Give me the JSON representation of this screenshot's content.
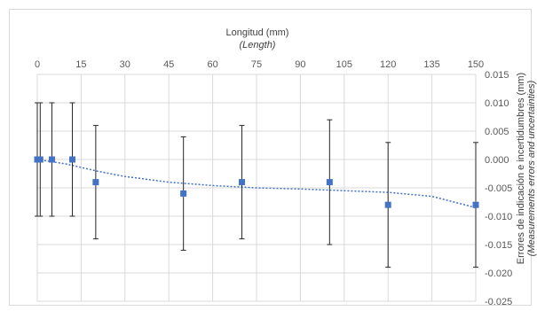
{
  "chart_data": {
    "type": "scatter",
    "xlabel": "Longitud (mm)",
    "xlabel_sub": "(Length)",
    "ylabel": "Errores de indicación e incertidumbres (mm)",
    "ylabel_sub": "(Measurements errors and uncertainties)",
    "xlim": [
      0,
      150
    ],
    "ylim": [
      -0.025,
      0.015
    ],
    "x_ticks": [
      "0",
      "15",
      "30",
      "45",
      "60",
      "75",
      "90",
      "105",
      "120",
      "135",
      "150"
    ],
    "x_tick_values": [
      0,
      15,
      30,
      45,
      60,
      75,
      90,
      105,
      120,
      135,
      150
    ],
    "y_ticks": [
      "0.015",
      "0.010",
      "0.005",
      "0.000",
      "-0.005",
      "-0.010",
      "-0.015",
      "-0.020",
      "-0.025"
    ],
    "y_tick_values": [
      0.015,
      0.01,
      0.005,
      0.0,
      -0.005,
      -0.01,
      -0.015,
      -0.02,
      -0.025
    ],
    "x_axis_position": "top",
    "y_axis_position": "right",
    "grid": true,
    "series": [
      {
        "x": [
          0,
          1,
          5,
          12,
          20,
          50,
          70,
          100,
          120,
          150
        ],
        "y": [
          0.0,
          0.0,
          0.0,
          0.0,
          -0.004,
          -0.006,
          -0.004,
          -0.004,
          -0.008,
          -0.008
        ],
        "error": [
          0.01,
          0.01,
          0.01,
          0.01,
          0.01,
          0.01,
          0.01,
          0.011,
          0.011,
          0.011
        ],
        "marker_color": "#4472c4"
      }
    ],
    "trendline": {
      "style": "dotted",
      "color": "#4472c4",
      "x": [
        0,
        10,
        20,
        30,
        45,
        60,
        75,
        90,
        105,
        120,
        135,
        150
      ],
      "y": [
        0.0,
        -0.0008,
        -0.002,
        -0.003,
        -0.004,
        -0.0046,
        -0.005,
        -0.0052,
        -0.0055,
        -0.0058,
        -0.0065,
        -0.0085
      ]
    }
  }
}
